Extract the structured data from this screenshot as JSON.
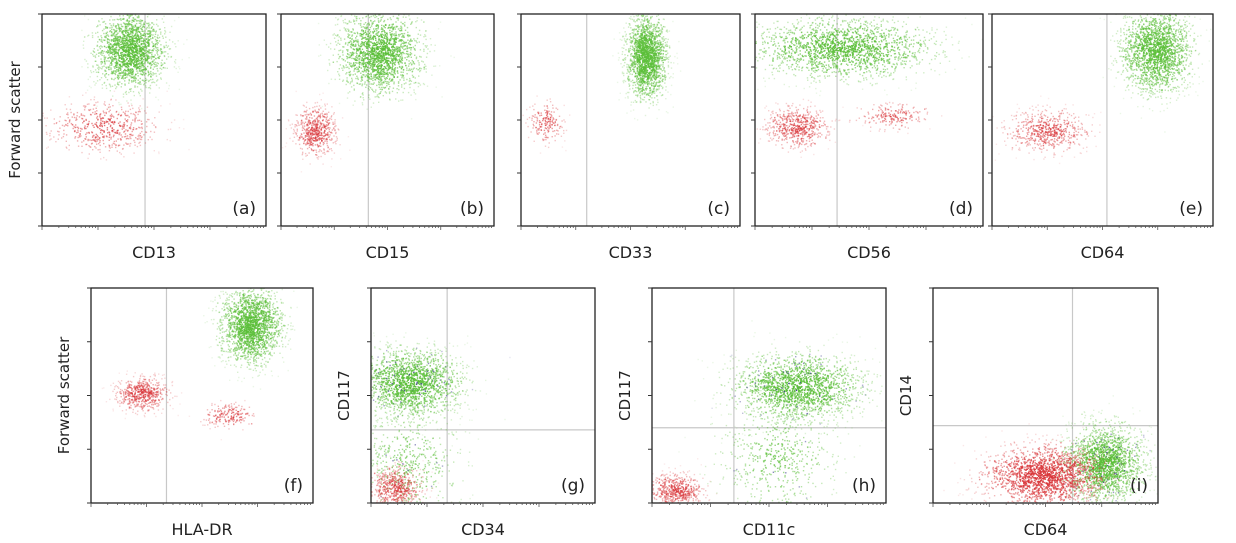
{
  "figure": {
    "description_free": true
  },
  "colors": {
    "gate_green": "#5cbf3a",
    "gate_red": "#d9363a",
    "gate_blue": "#3a3a8c",
    "quadrant_line": "#c8c8c8",
    "frame": "#222222"
  },
  "chart_data": [
    {
      "type": "scatter",
      "panel_label": "(a)",
      "xlabel": "CD13",
      "ylabel": "Forward scatter",
      "scale": "log",
      "grid": false,
      "quadrant_x": 0.46,
      "populations": [
        {
          "color": "green",
          "center": [
            0.39,
            0.83
          ],
          "spread": [
            0.08,
            0.09
          ],
          "density": "high"
        },
        {
          "color": "red",
          "center": [
            0.27,
            0.47
          ],
          "spread": [
            0.12,
            0.06
          ],
          "density": "medium"
        }
      ]
    },
    {
      "type": "scatter",
      "panel_label": "(b)",
      "xlabel": "CD15",
      "ylabel": "",
      "scale": "log",
      "grid": false,
      "quadrant_x": 0.41,
      "populations": [
        {
          "color": "green",
          "center": [
            0.46,
            0.82
          ],
          "spread": [
            0.1,
            0.1
          ],
          "density": "high"
        },
        {
          "color": "red",
          "center": [
            0.16,
            0.45
          ],
          "spread": [
            0.05,
            0.06
          ],
          "density": "medium"
        }
      ]
    },
    {
      "type": "scatter",
      "panel_label": "(c)",
      "xlabel": "CD33",
      "ylabel": "",
      "scale": "log",
      "grid": false,
      "quadrant_x": 0.3,
      "populations": [
        {
          "color": "green",
          "center": [
            0.57,
            0.8
          ],
          "spread": [
            0.045,
            0.1
          ],
          "density": "high"
        },
        {
          "color": "red",
          "center": [
            0.11,
            0.49
          ],
          "spread": [
            0.04,
            0.05
          ],
          "density": "low"
        }
      ]
    },
    {
      "type": "scatter",
      "panel_label": "(d)",
      "xlabel": "CD56",
      "ylabel": "",
      "scale": "log",
      "grid": false,
      "quadrant_x": 0.36,
      "populations": [
        {
          "color": "green",
          "center": [
            0.38,
            0.84
          ],
          "spread": [
            0.2,
            0.07
          ],
          "density": "high"
        },
        {
          "color": "red",
          "center": [
            0.18,
            0.47
          ],
          "spread": [
            0.07,
            0.05
          ],
          "density": "medium"
        },
        {
          "color": "red",
          "center": [
            0.6,
            0.52
          ],
          "spread": [
            0.08,
            0.03
          ],
          "density": "low"
        }
      ]
    },
    {
      "type": "scatter",
      "panel_label": "(e)",
      "xlabel": "CD64",
      "ylabel": "",
      "scale": "log",
      "grid": false,
      "quadrant_x": 0.52,
      "populations": [
        {
          "color": "green",
          "center": [
            0.74,
            0.83
          ],
          "spread": [
            0.08,
            0.1
          ],
          "density": "high"
        },
        {
          "color": "red",
          "center": [
            0.25,
            0.45
          ],
          "spread": [
            0.09,
            0.05
          ],
          "density": "medium"
        }
      ]
    },
    {
      "type": "scatter",
      "panel_label": "(f)",
      "xlabel": "HLA-DR",
      "ylabel": "Forward scatter",
      "scale": "log",
      "grid": false,
      "quadrant_x": 0.34,
      "populations": [
        {
          "color": "green",
          "center": [
            0.72,
            0.83
          ],
          "spread": [
            0.07,
            0.09
          ],
          "density": "high"
        },
        {
          "color": "red",
          "center": [
            0.23,
            0.51
          ],
          "spread": [
            0.06,
            0.04
          ],
          "density": "medium"
        },
        {
          "color": "red",
          "center": [
            0.62,
            0.41
          ],
          "spread": [
            0.06,
            0.03
          ],
          "density": "low"
        }
      ]
    },
    {
      "type": "scatter",
      "panel_label": "(g)",
      "xlabel": "CD34",
      "ylabel": "CD117",
      "scale": "log",
      "grid": false,
      "quadrant_x": 0.34,
      "quadrant_y": 0.34,
      "populations": [
        {
          "color": "green",
          "center": [
            0.17,
            0.56
          ],
          "spread": [
            0.12,
            0.08
          ],
          "density": "high"
        },
        {
          "color": "green",
          "center": [
            0.16,
            0.18
          ],
          "spread": [
            0.12,
            0.13
          ],
          "density": "medium"
        },
        {
          "color": "red",
          "center": [
            0.11,
            0.07
          ],
          "spread": [
            0.06,
            0.05
          ],
          "density": "medium"
        }
      ]
    },
    {
      "type": "scatter",
      "panel_label": "(h)",
      "xlabel": "CD11c",
      "ylabel": "CD117",
      "scale": "log",
      "grid": false,
      "quadrant_x": 0.35,
      "quadrant_y": 0.35,
      "populations": [
        {
          "color": "green",
          "center": [
            0.62,
            0.54
          ],
          "spread": [
            0.14,
            0.08
          ],
          "density": "high"
        },
        {
          "color": "green",
          "center": [
            0.53,
            0.22
          ],
          "spread": [
            0.13,
            0.14
          ],
          "density": "medium"
        },
        {
          "color": "red",
          "center": [
            0.1,
            0.06
          ],
          "spread": [
            0.06,
            0.04
          ],
          "density": "medium"
        }
      ]
    },
    {
      "type": "scatter",
      "panel_label": "(i)",
      "xlabel": "CD64",
      "ylabel": "CD14",
      "scale": "log",
      "grid": false,
      "quadrant_x": 0.62,
      "quadrant_y": 0.36,
      "populations": [
        {
          "color": "green",
          "center": [
            0.76,
            0.19
          ],
          "spread": [
            0.09,
            0.09
          ],
          "density": "high"
        },
        {
          "color": "red",
          "center": [
            0.49,
            0.13
          ],
          "spread": [
            0.13,
            0.07
          ],
          "density": "high"
        }
      ]
    }
  ]
}
